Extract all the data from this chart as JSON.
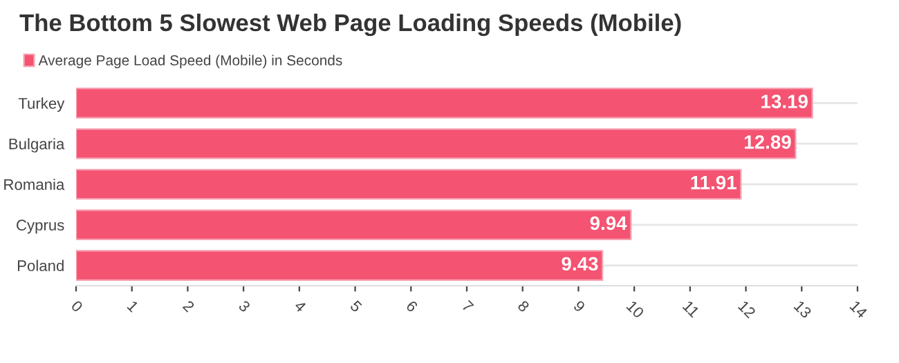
{
  "chart_data": {
    "type": "bar",
    "orientation": "horizontal",
    "title": "The Bottom 5 Slowest Web Page Loading Speeds (Mobile)",
    "categories": [
      "Turkey",
      "Bulgaria",
      "Romania",
      "Cyprus",
      "Poland"
    ],
    "series": [
      {
        "name": "Average Page Load Speed (Mobile) in Seconds",
        "color": "#f45372",
        "values": [
          13.19,
          12.89,
          11.91,
          9.94,
          9.43
        ]
      }
    ],
    "xlim": [
      0,
      14
    ],
    "xticks": [
      0,
      1,
      2,
      3,
      4,
      5,
      6,
      7,
      8,
      9,
      10,
      11,
      12,
      13,
      14
    ],
    "grid": "y",
    "legend": "top left",
    "data_labels": true
  }
}
